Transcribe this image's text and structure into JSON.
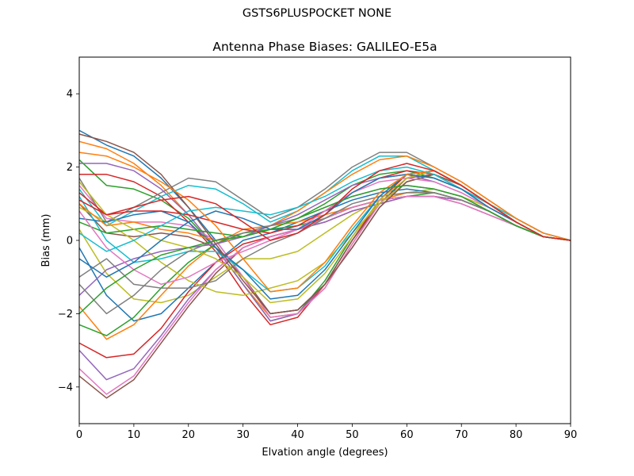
{
  "figure": {
    "suptitle": "GSTS6PLUSPOCKET NONE"
  },
  "chart_data": {
    "type": "line",
    "title": "Antenna Phase Biases: GALILEO-E5a",
    "xlabel": "Elvation angle (degrees)",
    "ylabel": "Bias (mm)",
    "xlim": [
      0,
      90
    ],
    "ylim": [
      -5,
      5
    ],
    "xticks": [
      0,
      10,
      20,
      30,
      40,
      50,
      60,
      70,
      80,
      90
    ],
    "yticks": [
      -4,
      -2,
      0,
      2,
      4
    ],
    "xtick_labels": [
      "0",
      "10",
      "20",
      "30",
      "40",
      "50",
      "60",
      "70",
      "80",
      "90"
    ],
    "ytick_labels": [
      "−4",
      "−2",
      "0",
      "2",
      "4"
    ],
    "grid": false,
    "legend": "none",
    "colors": [
      "#1f77b4",
      "#ff7f0e",
      "#2ca02c",
      "#d62728",
      "#9467bd",
      "#8c564b",
      "#e377c2",
      "#7f7f7f",
      "#bcbd22",
      "#17becf"
    ],
    "x": [
      0,
      5,
      10,
      15,
      20,
      25,
      30,
      35,
      40,
      45,
      50,
      55,
      60,
      65,
      70,
      75,
      80,
      85,
      90
    ],
    "series": [
      {
        "values": [
          3.0,
          2.6,
          2.3,
          1.7,
          0.9,
          0.0,
          -1.0,
          -2.0,
          -1.9,
          -1.2,
          -0.2,
          0.9,
          1.6,
          1.8,
          1.5,
          1.0,
          0.5,
          0.1,
          0.0
        ]
      },
      {
        "values": [
          2.7,
          2.5,
          2.1,
          1.5,
          0.7,
          -0.2,
          -1.2,
          -2.1,
          -2.0,
          -1.3,
          -0.1,
          1.0,
          1.7,
          1.9,
          1.5,
          1.0,
          0.5,
          0.1,
          0.0
        ]
      },
      {
        "values": [
          2.2,
          1.5,
          1.4,
          1.1,
          0.6,
          -0.2,
          -1.2,
          -2.2,
          -2.0,
          -1.1,
          0.1,
          1.1,
          1.8,
          1.9,
          1.5,
          1.0,
          0.5,
          0.1,
          0.0
        ]
      },
      {
        "values": [
          1.8,
          1.8,
          1.6,
          1.2,
          0.5,
          -0.3,
          -1.4,
          -2.3,
          -2.1,
          -1.2,
          0.0,
          1.1,
          1.8,
          1.9,
          1.5,
          1.0,
          0.5,
          0.1,
          0.0
        ]
      },
      {
        "values": [
          2.1,
          2.1,
          1.9,
          1.4,
          0.7,
          -0.2,
          -1.2,
          -2.2,
          -2.0,
          -1.2,
          0.0,
          1.0,
          1.7,
          1.9,
          1.5,
          1.0,
          0.5,
          0.1,
          0.0
        ]
      },
      {
        "values": [
          1.0,
          0.2,
          0.1,
          0.2,
          0.1,
          -0.2,
          -1.0,
          -2.0,
          -1.9,
          -1.2,
          0.0,
          1.0,
          1.7,
          1.8,
          1.5,
          1.0,
          0.5,
          0.1,
          0.0
        ]
      },
      {
        "values": [
          1.5,
          0.6,
          0.5,
          0.5,
          0.4,
          0.0,
          -1.0,
          -2.1,
          -2.0,
          -1.3,
          -0.1,
          1.0,
          1.6,
          1.8,
          1.5,
          1.0,
          0.5,
          0.1,
          0.0
        ]
      },
      {
        "values": [
          1.7,
          0.5,
          0.9,
          1.3,
          1.7,
          1.6,
          1.1,
          0.6,
          0.9,
          1.4,
          2.0,
          2.4,
          2.4,
          2.0,
          1.6,
          1.1,
          0.6,
          0.2,
          0.0
        ]
      },
      {
        "values": [
          0.3,
          -0.9,
          -1.6,
          -1.7,
          -1.5,
          -1.0,
          -0.5,
          -0.5,
          -0.3,
          0.2,
          0.7,
          1.1,
          1.3,
          1.4,
          1.2,
          0.9,
          0.5,
          0.1,
          0.0
        ]
      },
      {
        "values": [
          1.4,
          0.4,
          0.8,
          1.2,
          1.5,
          1.4,
          1.0,
          0.5,
          0.8,
          1.3,
          1.9,
          2.3,
          2.3,
          1.9,
          1.5,
          1.0,
          0.6,
          0.2,
          0.0
        ]
      },
      {
        "values": [
          -0.2,
          -1.5,
          -2.2,
          -2.0,
          -1.3,
          -0.6,
          0.0,
          0.2,
          0.5,
          0.8,
          1.1,
          1.3,
          1.4,
          1.3,
          1.1,
          0.8,
          0.4,
          0.1,
          0.0
        ]
      },
      {
        "values": [
          -1.8,
          -2.7,
          -2.3,
          -1.5,
          -0.7,
          -0.1,
          0.3,
          0.4,
          0.5,
          0.7,
          0.9,
          1.1,
          1.3,
          1.3,
          1.1,
          0.8,
          0.4,
          0.1,
          0.0
        ]
      },
      {
        "values": [
          -2.3,
          -2.6,
          -2.1,
          -1.3,
          -0.6,
          -0.1,
          0.2,
          0.3,
          0.4,
          0.6,
          0.9,
          1.1,
          1.2,
          1.3,
          1.1,
          0.8,
          0.4,
          0.1,
          0.0
        ]
      },
      {
        "values": [
          -2.8,
          -3.2,
          -3.1,
          -2.4,
          -1.4,
          -0.6,
          -0.1,
          0.1,
          0.3,
          0.5,
          0.8,
          1.0,
          1.2,
          1.2,
          1.1,
          0.8,
          0.4,
          0.1,
          0.0
        ]
      },
      {
        "values": [
          -3.0,
          -3.8,
          -3.5,
          -2.6,
          -1.6,
          -0.8,
          -0.2,
          0.1,
          0.3,
          0.5,
          0.8,
          1.0,
          1.2,
          1.2,
          1.1,
          0.8,
          0.4,
          0.1,
          0.0
        ]
      },
      {
        "values": [
          -3.7,
          -4.3,
          -3.8,
          -2.8,
          -1.8,
          -0.9,
          -0.2,
          0.1,
          0.3,
          0.6,
          0.9,
          1.1,
          1.2,
          1.2,
          1.0,
          0.7,
          0.4,
          0.1,
          0.0
        ]
      },
      {
        "values": [
          -3.5,
          -4.2,
          -3.7,
          -2.7,
          -1.7,
          -0.8,
          -0.2,
          0.1,
          0.3,
          0.6,
          0.9,
          1.1,
          1.2,
          1.2,
          1.0,
          0.7,
          0.4,
          0.1,
          0.0
        ]
      },
      {
        "values": [
          -1.0,
          -0.5,
          -1.2,
          -1.3,
          -1.3,
          -1.1,
          -0.5,
          -0.1,
          0.2,
          0.6,
          1.0,
          1.2,
          1.3,
          1.3,
          1.1,
          0.8,
          0.4,
          0.1,
          0.0
        ]
      },
      {
        "values": [
          0.9,
          0.5,
          0.0,
          -0.6,
          -1.1,
          -1.4,
          -1.5,
          -1.3,
          -1.1,
          -0.6,
          0.2,
          1.0,
          1.6,
          1.8,
          1.5,
          1.0,
          0.5,
          0.1,
          0.0
        ]
      },
      {
        "values": [
          1.2,
          0.0,
          -0.6,
          -0.5,
          -0.3,
          -0.3,
          -0.8,
          -1.4,
          -1.3,
          -0.7,
          0.3,
          1.2,
          1.8,
          1.9,
          1.5,
          1.0,
          0.5,
          0.1,
          0.0
        ]
      },
      {
        "values": [
          0.6,
          0.5,
          0.7,
          0.8,
          0.5,
          -0.2,
          -0.8,
          -1.6,
          -1.5,
          -0.8,
          0.2,
          1.2,
          1.8,
          1.9,
          1.5,
          1.0,
          0.5,
          0.1,
          0.0
        ]
      },
      {
        "values": [
          1.0,
          0.4,
          0.5,
          0.3,
          0.2,
          0.0,
          0.1,
          0.4,
          0.8,
          1.3,
          1.8,
          2.2,
          2.3,
          2.0,
          1.6,
          1.1,
          0.6,
          0.2,
          0.0
        ]
      },
      {
        "values": [
          0.5,
          0.2,
          0.3,
          0.4,
          0.3,
          0.2,
          0.1,
          0.3,
          0.6,
          1.0,
          1.5,
          1.8,
          1.9,
          1.7,
          1.4,
          0.9,
          0.5,
          0.1,
          0.0
        ]
      },
      {
        "values": [
          1.3,
          0.7,
          0.8,
          0.8,
          0.7,
          0.5,
          0.3,
          0.2,
          0.4,
          0.8,
          1.3,
          1.7,
          1.9,
          1.8,
          1.4,
          1.0,
          0.5,
          0.1,
          0.0
        ]
      },
      {
        "values": [
          -1.5,
          -0.8,
          -0.5,
          -0.3,
          -0.2,
          -0.1,
          0.1,
          0.4,
          0.7,
          1.1,
          1.5,
          1.7,
          1.8,
          1.6,
          1.3,
          0.9,
          0.5,
          0.1,
          0.0
        ]
      },
      {
        "values": [
          2.9,
          2.7,
          2.4,
          1.8,
          0.9,
          -0.1,
          -1.1,
          -2.0,
          -1.9,
          -1.2,
          -0.2,
          0.9,
          1.6,
          1.8,
          1.5,
          1.0,
          0.5,
          0.1,
          0.0
        ]
      },
      {
        "values": [
          0.8,
          -0.2,
          -0.8,
          -1.2,
          -1.0,
          -0.6,
          -0.3,
          0.0,
          0.3,
          0.8,
          1.3,
          1.6,
          1.7,
          1.6,
          1.3,
          0.9,
          0.5,
          0.1,
          0.0
        ]
      },
      {
        "values": [
          -1.2,
          -2.0,
          -1.5,
          -0.8,
          -0.3,
          0.0,
          0.2,
          0.4,
          0.6,
          0.9,
          1.2,
          1.4,
          1.5,
          1.4,
          1.2,
          0.8,
          0.4,
          0.1,
          0.0
        ]
      },
      {
        "values": [
          1.6,
          0.7,
          0.3,
          0.0,
          -0.2,
          -0.5,
          -1.0,
          -1.7,
          -1.6,
          -0.9,
          0.1,
          1.1,
          1.7,
          1.9,
          1.5,
          1.0,
          0.5,
          0.1,
          0.0
        ]
      },
      {
        "values": [
          0.2,
          -0.3,
          0.0,
          0.4,
          0.8,
          0.9,
          0.8,
          0.7,
          0.9,
          1.2,
          1.6,
          1.9,
          2.0,
          1.8,
          1.4,
          1.0,
          0.5,
          0.1,
          0.0
        ]
      },
      {
        "values": [
          -0.5,
          -1.0,
          -0.6,
          0.0,
          0.5,
          0.8,
          0.6,
          0.3,
          0.3,
          0.7,
          1.3,
          1.7,
          1.8,
          1.7,
          1.4,
          0.9,
          0.5,
          0.1,
          0.0
        ]
      },
      {
        "values": [
          2.4,
          2.3,
          2.0,
          1.6,
          1.1,
          0.4,
          -0.5,
          -1.4,
          -1.3,
          -0.6,
          0.4,
          1.3,
          1.8,
          1.9,
          1.5,
          1.0,
          0.5,
          0.1,
          0.0
        ]
      },
      {
        "values": [
          -2.0,
          -1.3,
          -0.8,
          -0.4,
          -0.2,
          0.0,
          0.1,
          0.3,
          0.6,
          0.9,
          1.2,
          1.4,
          1.5,
          1.4,
          1.2,
          0.8,
          0.4,
          0.1,
          0.0
        ]
      },
      {
        "values": [
          1.1,
          0.7,
          0.9,
          1.1,
          1.2,
          1.0,
          0.5,
          0.0,
          0.2,
          0.7,
          1.4,
          1.9,
          2.1,
          1.9,
          1.5,
          1.0,
          0.5,
          0.1,
          0.0
        ]
      }
    ]
  }
}
